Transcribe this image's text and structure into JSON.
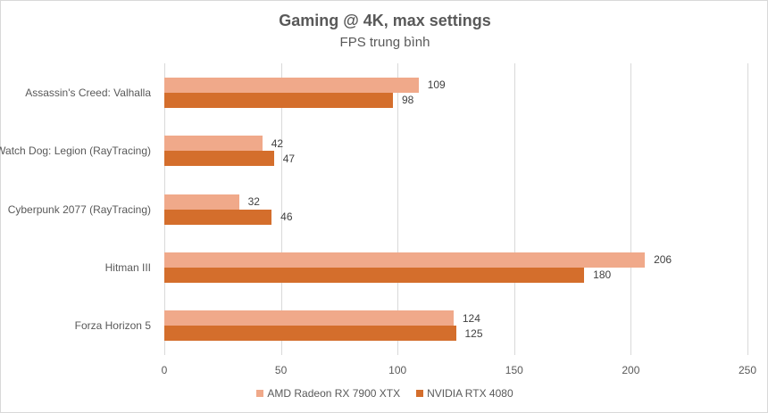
{
  "chart_data": {
    "type": "bar",
    "orientation": "horizontal",
    "title": "Gaming @ 4K, max settings",
    "subtitle": "FPS trung bình",
    "xlabel": "",
    "ylabel": "",
    "xlim": [
      0,
      250
    ],
    "x_ticks": [
      "0",
      "50",
      "100",
      "150",
      "200",
      "250"
    ],
    "grid": true,
    "legend_position": "bottom",
    "categories": [
      "Assassin's Creed: Valhalla",
      "Watch Dog: Legion (RayTracing)",
      "Cyberpunk 2077 (RayTracing)",
      "Hitman III",
      "Forza Horizon 5"
    ],
    "series": [
      {
        "name": "AMD Radeon RX 7900 XTX",
        "color": "#f0a98a",
        "values": [
          109,
          42,
          32,
          206,
          124
        ]
      },
      {
        "name": "NVIDIA RTX 4080",
        "color": "#d46e2c",
        "values": [
          98,
          47,
          46,
          180,
          125
        ]
      }
    ]
  }
}
